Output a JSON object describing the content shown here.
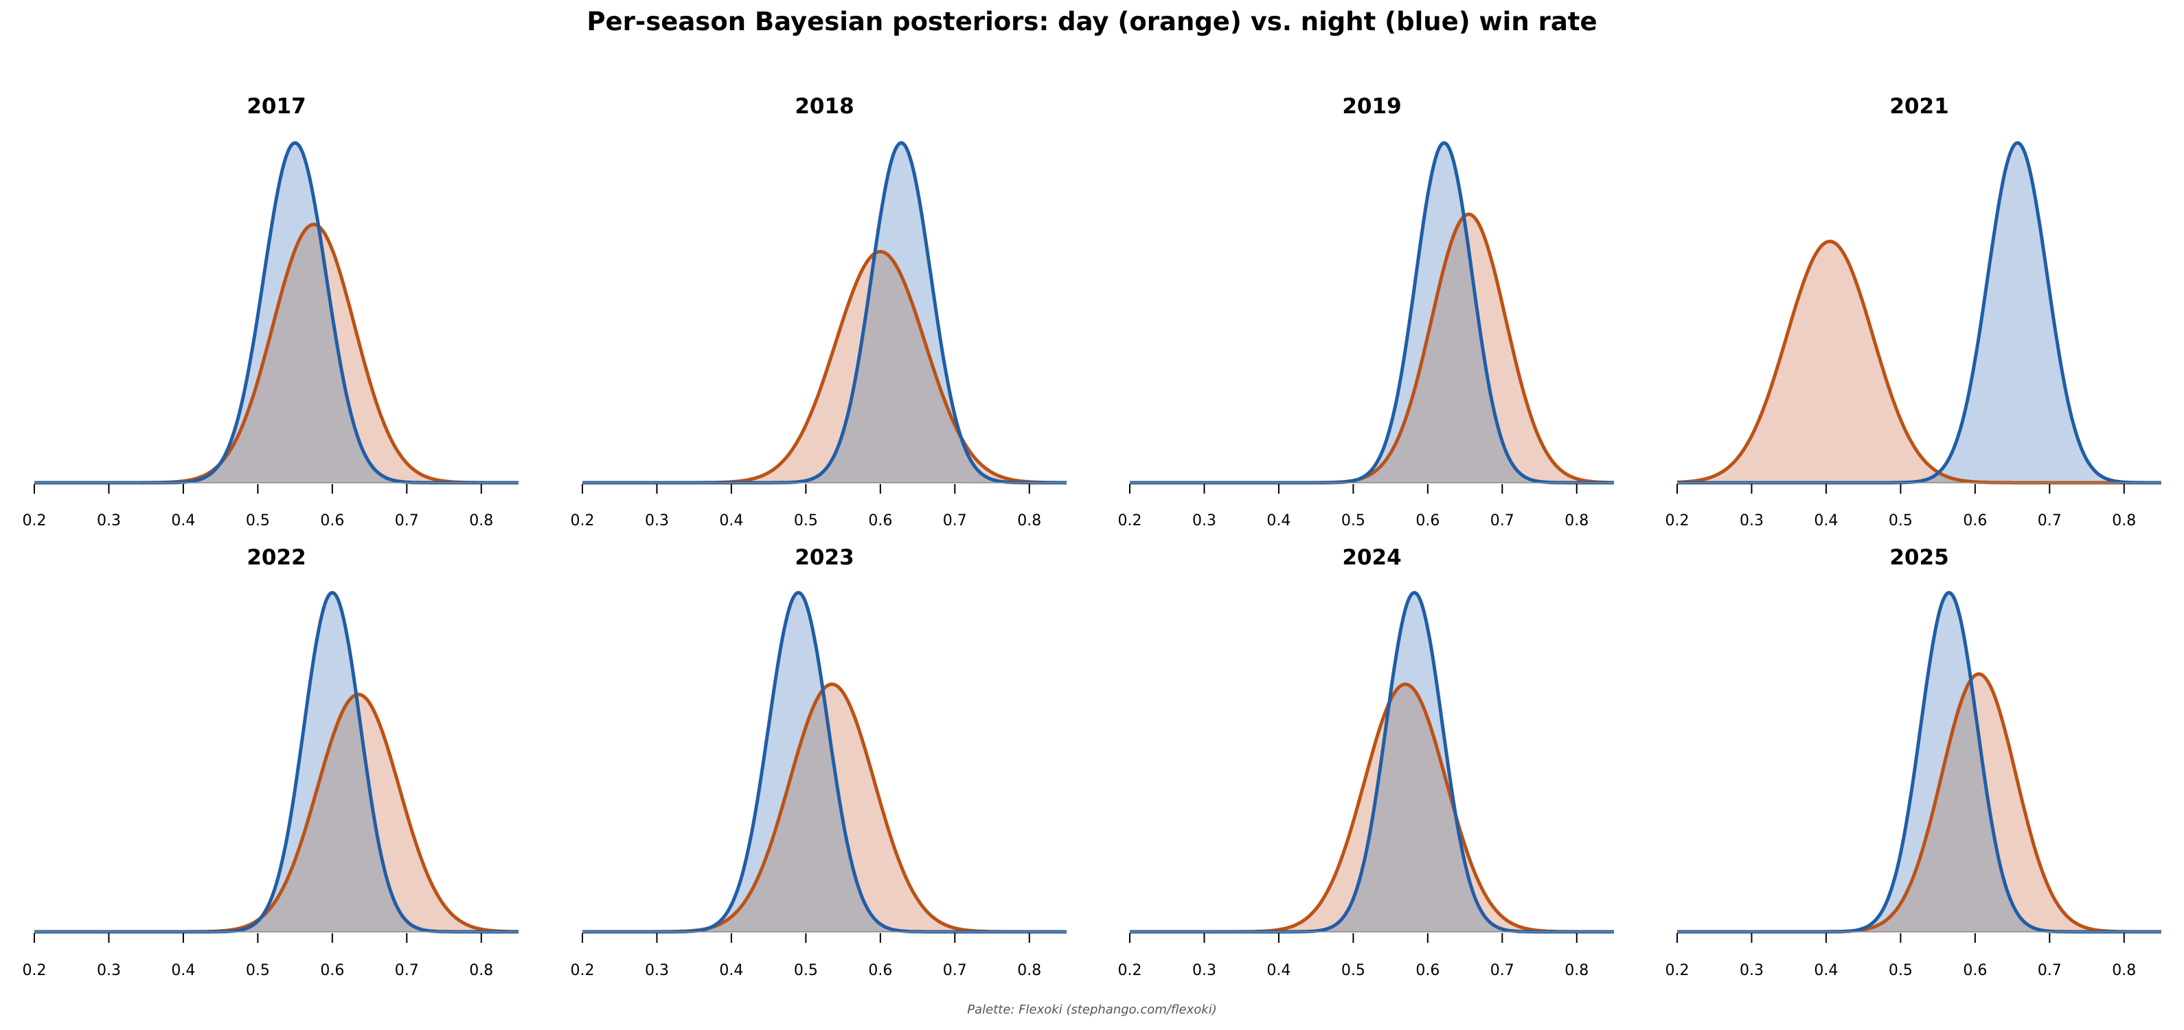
{
  "title": "Per-season Bayesian posteriors: day (orange) vs. night (blue) win rate",
  "credit": "Palette: Flexoki (stephango.com/flexoki)",
  "colors": {
    "day_line": "#BC5215",
    "day_fill": "#EDD0C3",
    "night_line": "#205EA6",
    "night_fill": "#C3D4EA",
    "overlap_fill": "#B9B3BA",
    "axis": "#000000"
  },
  "chart_data": [
    {
      "type": "area",
      "title": "2017",
      "xlim": [
        0.2,
        0.85
      ],
      "x_ticks": [
        "0.2",
        "0.3",
        "0.4",
        "0.5",
        "0.6",
        "0.7",
        "0.8"
      ],
      "series": [
        {
          "name": "day",
          "mean": 0.575,
          "sd": 0.055,
          "peak": 0.76
        },
        {
          "name": "night",
          "mean": 0.55,
          "sd": 0.042,
          "peak": 1.0
        }
      ]
    },
    {
      "type": "area",
      "title": "2018",
      "xlim": [
        0.2,
        0.85
      ],
      "x_ticks": [
        "0.2",
        "0.3",
        "0.4",
        "0.5",
        "0.6",
        "0.7",
        "0.8"
      ],
      "series": [
        {
          "name": "day",
          "mean": 0.6,
          "sd": 0.06,
          "peak": 0.68
        },
        {
          "name": "night",
          "mean": 0.628,
          "sd": 0.04,
          "peak": 1.0
        }
      ]
    },
    {
      "type": "area",
      "title": "2019",
      "xlim": [
        0.2,
        0.85
      ],
      "x_ticks": [
        "0.2",
        "0.3",
        "0.4",
        "0.5",
        "0.6",
        "0.7",
        "0.8"
      ],
      "series": [
        {
          "name": "day",
          "mean": 0.655,
          "sd": 0.05,
          "peak": 0.79
        },
        {
          "name": "night",
          "mean": 0.622,
          "sd": 0.038,
          "peak": 1.0
        }
      ]
    },
    {
      "type": "area",
      "title": "2021",
      "xlim": [
        0.2,
        0.85
      ],
      "x_ticks": [
        "0.2",
        "0.3",
        "0.4",
        "0.5",
        "0.6",
        "0.7",
        "0.8"
      ],
      "series": [
        {
          "name": "day",
          "mean": 0.405,
          "sd": 0.058,
          "peak": 0.71
        },
        {
          "name": "night",
          "mean": 0.657,
          "sd": 0.04,
          "peak": 1.0
        }
      ]
    },
    {
      "type": "area",
      "title": "2022",
      "xlim": [
        0.2,
        0.85
      ],
      "x_ticks": [
        "0.2",
        "0.3",
        "0.4",
        "0.5",
        "0.6",
        "0.7",
        "0.8"
      ],
      "series": [
        {
          "name": "day",
          "mean": 0.635,
          "sd": 0.055,
          "peak": 0.7
        },
        {
          "name": "night",
          "mean": 0.6,
          "sd": 0.038,
          "peak": 1.0
        }
      ]
    },
    {
      "type": "area",
      "title": "2023",
      "xlim": [
        0.2,
        0.85
      ],
      "x_ticks": [
        "0.2",
        "0.3",
        "0.4",
        "0.5",
        "0.6",
        "0.7",
        "0.8"
      ],
      "series": [
        {
          "name": "day",
          "mean": 0.535,
          "sd": 0.057,
          "peak": 0.73
        },
        {
          "name": "night",
          "mean": 0.49,
          "sd": 0.04,
          "peak": 1.0
        }
      ]
    },
    {
      "type": "area",
      "title": "2024",
      "xlim": [
        0.2,
        0.85
      ],
      "x_ticks": [
        "0.2",
        "0.3",
        "0.4",
        "0.5",
        "0.6",
        "0.7",
        "0.8"
      ],
      "series": [
        {
          "name": "day",
          "mean": 0.57,
          "sd": 0.055,
          "peak": 0.73
        },
        {
          "name": "night",
          "mean": 0.582,
          "sd": 0.038,
          "peak": 1.0
        }
      ]
    },
    {
      "type": "area",
      "title": "2025",
      "xlim": [
        0.2,
        0.85
      ],
      "x_ticks": [
        "0.2",
        "0.3",
        "0.4",
        "0.5",
        "0.6",
        "0.7",
        "0.8"
      ],
      "series": [
        {
          "name": "day",
          "mean": 0.605,
          "sd": 0.05,
          "peak": 0.76
        },
        {
          "name": "night",
          "mean": 0.565,
          "sd": 0.038,
          "peak": 1.0
        }
      ]
    }
  ]
}
